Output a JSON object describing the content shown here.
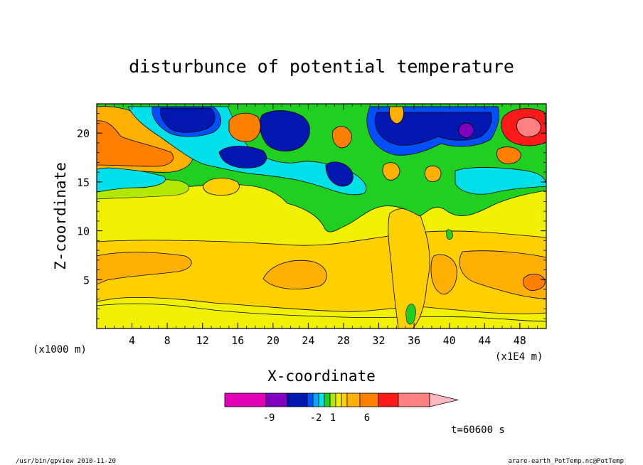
{
  "chart_data": {
    "type": "heatmap",
    "title": "disturbunce of potential temperature",
    "xlabel": "X-coordinate",
    "ylabel": "Z-coordinate",
    "x_unit_left": "(x1000 m)",
    "x_unit_right": "(x1E4 m)",
    "xlim": [
      0,
      51
    ],
    "ylim": [
      0,
      23
    ],
    "x_ticks": [
      "4",
      "8",
      "12",
      "16",
      "20",
      "24",
      "28",
      "32",
      "36",
      "40",
      "44",
      "48"
    ],
    "y_ticks": [
      "5",
      "10",
      "15",
      "20"
    ],
    "colorbar_labels": [
      "-9",
      "-2",
      "1",
      "6"
    ],
    "colorbar_colors": [
      "#e000b8",
      "#8000c0",
      "#0018b0",
      "#0050ff",
      "#00a8ff",
      "#00e0e8",
      "#20d020",
      "#b0e800",
      "#f0f000",
      "#ffd000",
      "#ffb000",
      "#ff8000",
      "#ff1a1a",
      "#ff8080",
      "#ffb8c0"
    ],
    "time_label": "t=60600 s",
    "footer_left": "/usr/bin/gpview   2010-11-20",
    "footer_right": "arare-earth_PotTemp.nc@PotTemp",
    "regions": [
      {
        "band": "upper",
        "z": [
          14,
          23
        ],
        "level": "mixed",
        "note_levels": [
          "-9",
          "-2",
          "1",
          "6"
        ]
      }
    ]
  }
}
